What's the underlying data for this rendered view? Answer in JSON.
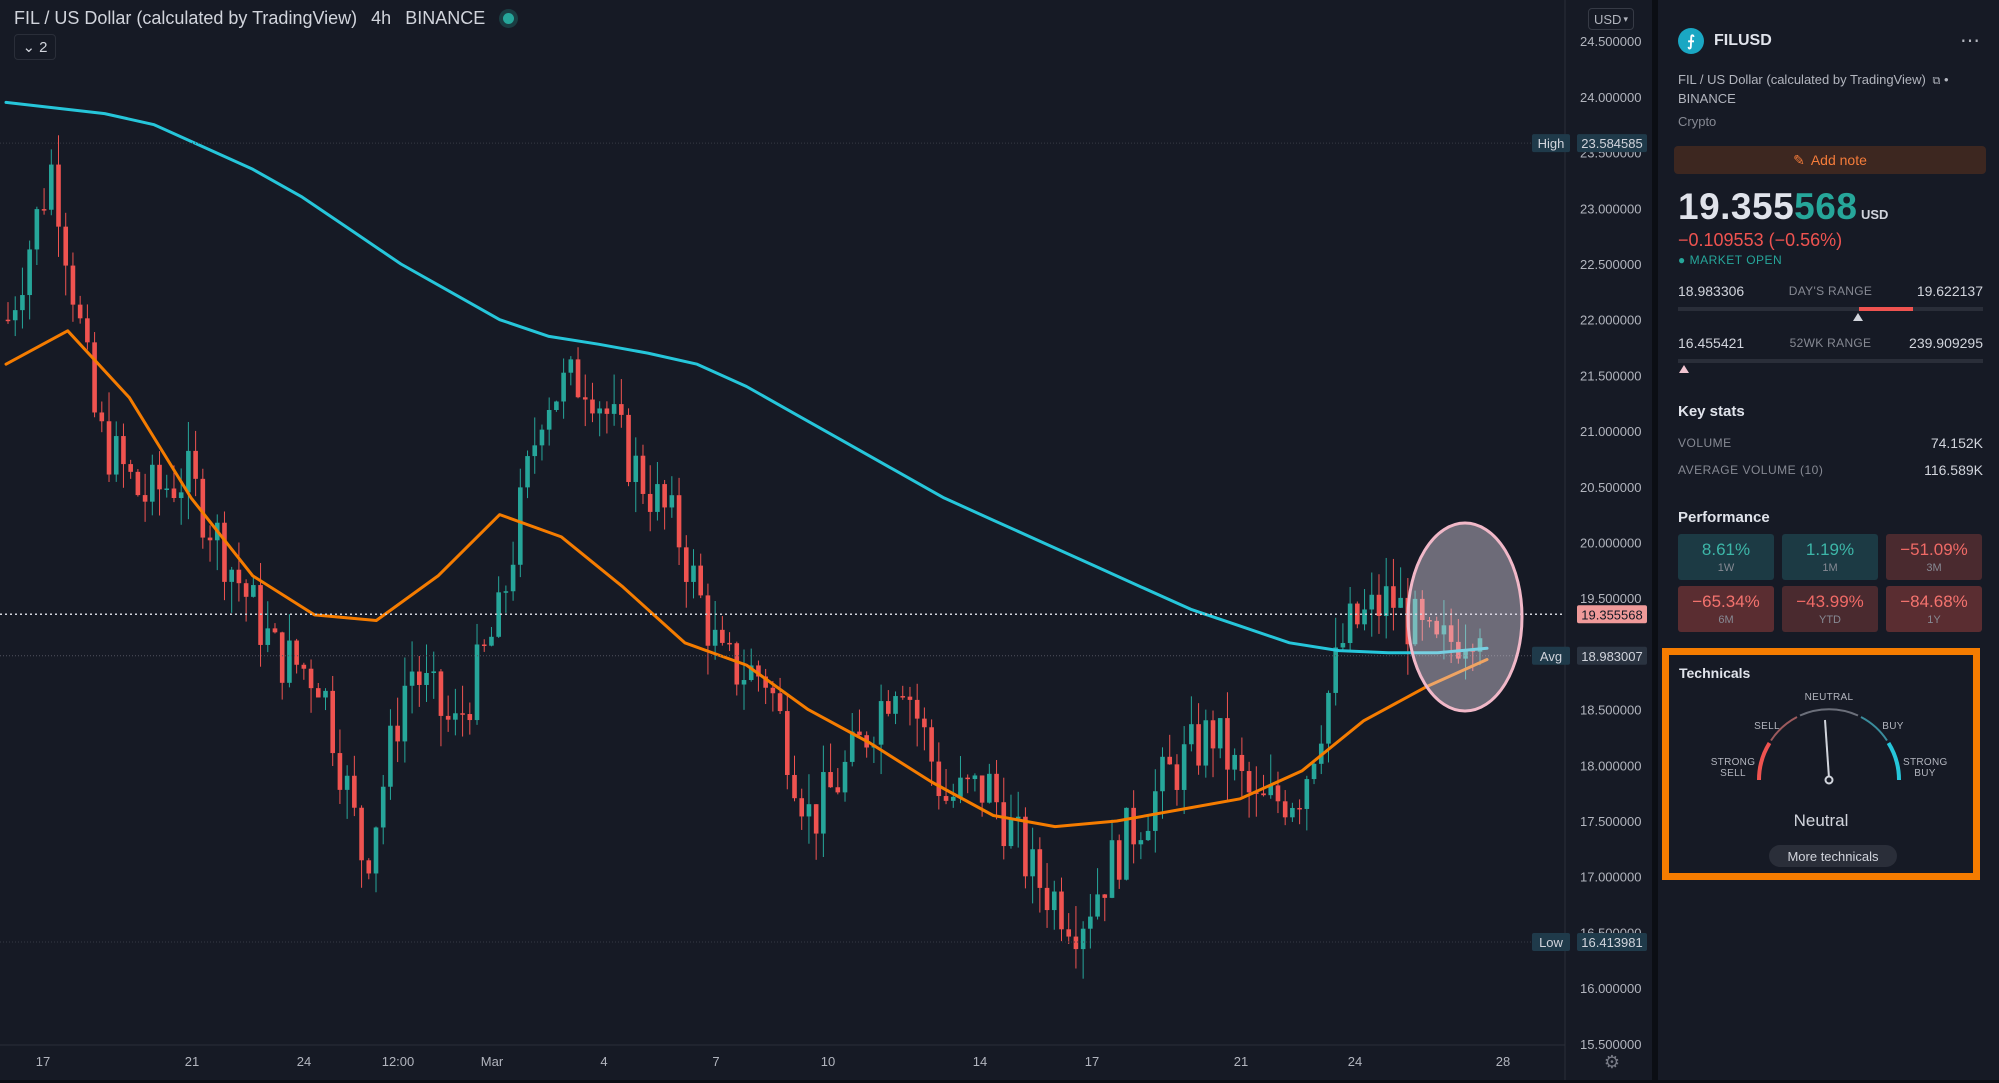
{
  "chart": {
    "title": "FIL / US Dollar (calculated by TradingView)",
    "interval": "4h",
    "exchange": "BINANCE",
    "indicator_count": "2",
    "currency_select": "USD"
  },
  "chart_data": {
    "type": "candlestick",
    "y_ticks": [
      "15.500000",
      "16.000000",
      "16.500000",
      "17.000000",
      "17.500000",
      "18.000000",
      "18.500000",
      "19.000000",
      "19.500000",
      "20.000000",
      "20.500000",
      "21.000000",
      "21.500000",
      "22.000000",
      "22.500000",
      "23.000000",
      "23.500000",
      "24.000000",
      "24.500000"
    ],
    "x_ticks": [
      "17",
      "21",
      "24",
      "12:00",
      "Mar",
      "4",
      "7",
      "10",
      "14",
      "17",
      "21",
      "24",
      "28"
    ],
    "ylim": [
      15.4,
      24.6
    ],
    "price_labels": [
      {
        "tag": "High",
        "value": "23.584585"
      },
      {
        "tag": "",
        "value": "19.355568"
      },
      {
        "tag": "Avg",
        "value": "18.983007"
      },
      {
        "tag": "Low",
        "value": "16.413981"
      }
    ],
    "ma_slow": [
      23.95,
      23.9,
      23.85,
      23.75,
      23.55,
      23.35,
      23.1,
      22.8,
      22.5,
      22.25,
      22.0,
      21.85,
      21.78,
      21.7,
      21.6,
      21.4,
      21.15,
      20.9,
      20.65,
      20.4,
      20.2,
      20.0,
      19.8,
      19.6,
      19.4,
      19.25,
      19.1,
      19.03,
      19.01,
      19.01,
      19.05
    ],
    "ma_fast": [
      21.6,
      21.9,
      21.3,
      20.4,
      19.7,
      19.35,
      19.3,
      19.7,
      20.25,
      20.05,
      19.6,
      19.1,
      18.9,
      18.5,
      18.2,
      17.85,
      17.55,
      17.45,
      17.5,
      17.6,
      17.7,
      17.95,
      18.4,
      18.7,
      18.95
    ],
    "ohlc_anchors": [
      22.0,
      23.4,
      21.0,
      20.4,
      20.6,
      19.8,
      19.0,
      18.8,
      17.1,
      18.9,
      18.3,
      19.3,
      21.3,
      21.5,
      20.7,
      20.1,
      18.9,
      18.8,
      17.5,
      18.1,
      18.9,
      17.7,
      17.8,
      17.0,
      16.6,
      17.3,
      17.9,
      18.3,
      17.6,
      17.8,
      19.2,
      19.5,
      19.0,
      19.35
    ]
  },
  "panel": {
    "symbol": "FILUSD",
    "description": "FIL / US Dollar (calculated by TradingView)",
    "exchange": "BINANCE",
    "type": "Crypto",
    "add_note": "Add note",
    "price_main": "19.355",
    "price_highlight": "568",
    "price_currency": "USD",
    "change": "−0.109553 (−0.56%)",
    "market_status": "MARKET OPEN",
    "day_low": "18.983306",
    "day_range_label": "DAY'S RANGE",
    "day_high": "19.622137",
    "wk_low": "16.455421",
    "wk_range_label": "52WK RANGE",
    "wk_high": "239.909295",
    "key_stats_title": "Key stats",
    "volume_label": "VOLUME",
    "volume_value": "74.152K",
    "avg_volume_label": "AVERAGE VOLUME (10)",
    "avg_volume_value": "116.589K",
    "performance_title": "Performance",
    "performance": [
      {
        "value": "8.61%",
        "period": "1W",
        "dir": "up"
      },
      {
        "value": "1.19%",
        "period": "1M",
        "dir": "up"
      },
      {
        "value": "−51.09%",
        "period": "3M",
        "dir": "down"
      },
      {
        "value": "−65.34%",
        "period": "6M",
        "dir": "down"
      },
      {
        "value": "−43.99%",
        "period": "YTD",
        "dir": "down"
      },
      {
        "value": "−84.68%",
        "period": "1Y",
        "dir": "down"
      }
    ],
    "technicals_title": "Technicals",
    "gauge": {
      "strong_sell": "STRONG SELL",
      "sell": "SELL",
      "neutral": "NEUTRAL",
      "buy": "BUY",
      "strong_buy": "STRONG BUY"
    },
    "technicals_result": "Neutral",
    "more_technicals": "More technicals"
  },
  "colors": {
    "up": "#26a69a",
    "down": "#ef5350",
    "ma_slow": "#26c6da",
    "ma_fast": "#f57c00",
    "highlight_box": "#f57c00"
  }
}
